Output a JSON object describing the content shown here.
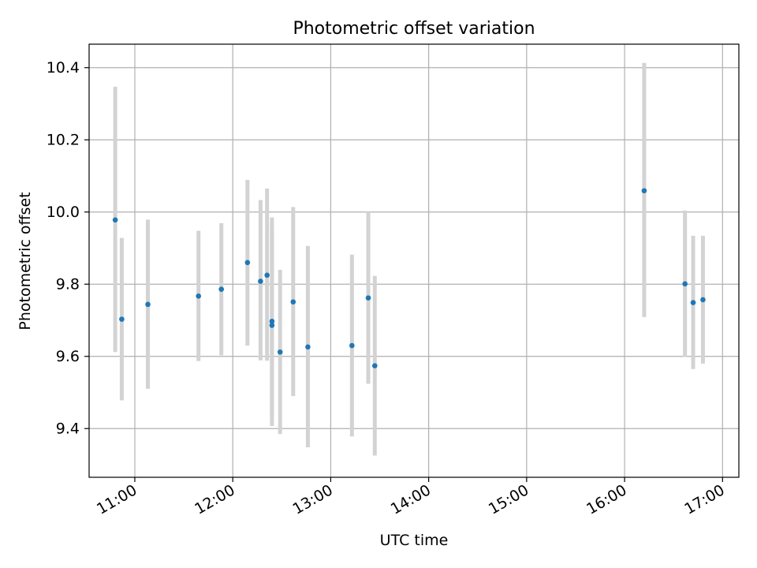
{
  "chart_data": {
    "type": "scatter",
    "title": "Photometric offset variation",
    "xlabel": "UTC time",
    "ylabel": "Photometric offset",
    "xlim": [
      "10:32",
      "17:10"
    ],
    "ylim": [
      9.265,
      10.465
    ],
    "x_ticks": [
      "11:00",
      "12:00",
      "13:00",
      "14:00",
      "15:00",
      "16:00",
      "17:00"
    ],
    "y_ticks": [
      9.4,
      9.6,
      9.8,
      10.0,
      10.2,
      10.4
    ],
    "y_tick_labels": [
      "9.4",
      "9.6",
      "9.8",
      "10.0",
      "10.2",
      "10.4"
    ],
    "grid": true,
    "marker_color": "#1f77b4",
    "errorbar_color": "#d3d3d3",
    "points": [
      {
        "x": "10:48",
        "y": 9.978,
        "lo": 9.612,
        "hi": 10.347
      },
      {
        "x": "10:52",
        "y": 9.703,
        "lo": 9.478,
        "hi": 9.928
      },
      {
        "x": "11:08",
        "y": 9.744,
        "lo": 9.51,
        "hi": 9.979
      },
      {
        "x": "11:39",
        "y": 9.767,
        "lo": 9.587,
        "hi": 9.948
      },
      {
        "x": "11:53",
        "y": 9.786,
        "lo": 9.603,
        "hi": 9.969
      },
      {
        "x": "12:09",
        "y": 9.86,
        "lo": 9.63,
        "hi": 10.089
      },
      {
        "x": "12:17",
        "y": 9.808,
        "lo": 9.589,
        "hi": 10.033
      },
      {
        "x": "12:21",
        "y": 9.825,
        "lo": 9.588,
        "hi": 10.065
      },
      {
        "x": "12:24",
        "y": 9.697,
        "lo": 9.431,
        "hi": 9.958
      },
      {
        "x": "12:24",
        "y": 9.686,
        "lo": 9.407,
        "hi": 9.985
      },
      {
        "x": "12:29",
        "y": 9.612,
        "lo": 9.385,
        "hi": 9.84
      },
      {
        "x": "12:37",
        "y": 9.751,
        "lo": 9.49,
        "hi": 10.014
      },
      {
        "x": "12:46",
        "y": 9.626,
        "lo": 9.348,
        "hi": 9.906
      },
      {
        "x": "13:13",
        "y": 9.63,
        "lo": 9.378,
        "hi": 9.882
      },
      {
        "x": "13:23",
        "y": 9.762,
        "lo": 9.524,
        "hi": 10.0
      },
      {
        "x": "13:27",
        "y": 9.574,
        "lo": 9.325,
        "hi": 9.823
      },
      {
        "x": "16:12",
        "y": 10.059,
        "lo": 9.709,
        "hi": 10.413
      },
      {
        "x": "16:37",
        "y": 9.801,
        "lo": 9.598,
        "hi": 10.004
      },
      {
        "x": "16:42",
        "y": 9.749,
        "lo": 9.565,
        "hi": 9.934
      },
      {
        "x": "16:48",
        "y": 9.757,
        "lo": 9.58,
        "hi": 9.934
      }
    ]
  }
}
